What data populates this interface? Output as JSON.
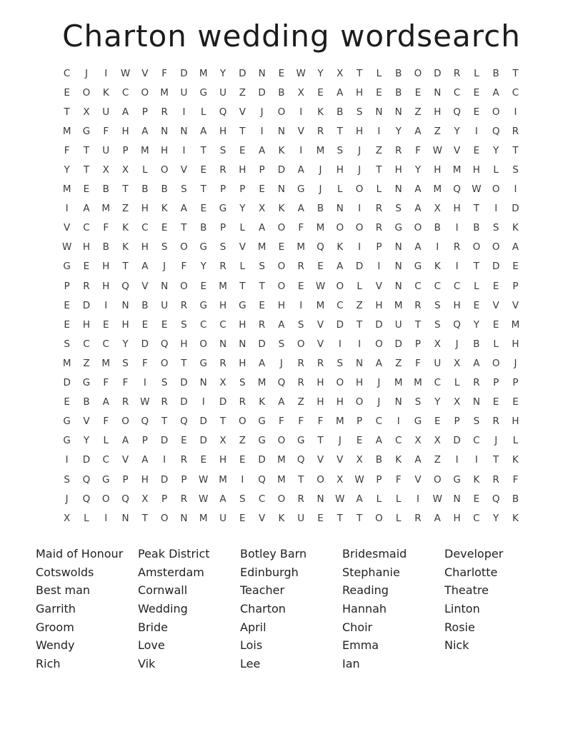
{
  "title": "Charton wedding wordsearch",
  "grid": {
    "rows": [
      "CJIWVFDMYDNEWYXTLBODRLBT",
      "EOKCOMUGUZDBXEAHEBENCEAC",
      "TXUAPRILQVJOIKBSNNZHQEOI",
      "MGFHANNAHTINVRTHIYAZYIQR",
      "FTUPMHITSEAKIMSJZRFWVEYT",
      "YTXXLOVERHPDAJHJTHYHMHLS",
      "MEBTBBSTPPENGJLOLNAMQWOI",
      "IAMZHKAEGYXKABNIRSAXHTID",
      "VCFKCETBPLAOFMOORGOBIBSK",
      "WHBKHSOGSVMEMQKIPNAIROOA",
      "GEHTAJFYRLSOREADINGKITDE",
      "PRHQVNOEMTTOEWOLVNCCCLEP",
      "EDINBURGHGEHIMCZHMRSHEVV",
      "EHEHEESCCHRASVDTDUTSQYEM",
      "SCCYDQHONNDSOVIIODPXJBLH",
      "MZMSFOTGRHAJRRSNAZFUXAOJ",
      "DGFFISDNXSMQRHOHJMMCLRPP",
      "EBARWRDIDRKAZHHOJNSYXNEE",
      "GVFOQTQDTOGFFFMPCIGEPSRH",
      "GYLAPDEDXZGOGTJEACXXDCJL",
      "IDCVAIREHEDMQVVXBKAZIITK",
      "SQGPHDPWMIQMTOXWPFVOGKRF",
      "JQOQXPRWASCORNWALLIWNEQB",
      "XLINTONMUEVKUETTOLRAHCYK"
    ]
  },
  "word_list": {
    "columns": [
      {
        "words": [
          "Maid of Honour",
          "Cotswolds",
          "Best man",
          "Garrith",
          "Groom",
          "Wendy",
          "Rich"
        ]
      },
      {
        "words": [
          "Peak District",
          "Amsterdam",
          "Cornwall",
          "Wedding",
          "Bride",
          "Love",
          "Vik"
        ]
      },
      {
        "words": [
          "Botley Barn",
          "Edinburgh",
          "Teacher",
          "Charton",
          "April",
          "Lois",
          "Lee"
        ]
      },
      {
        "words": [
          "Bridesmaid",
          "Stephanie",
          "Reading",
          "Hannah",
          "Choir",
          "Emma",
          "Ian"
        ]
      },
      {
        "words": [
          "Developer",
          "Charlotte",
          "Theatre",
          "Linton",
          "Rosie",
          "Nick"
        ]
      }
    ]
  }
}
